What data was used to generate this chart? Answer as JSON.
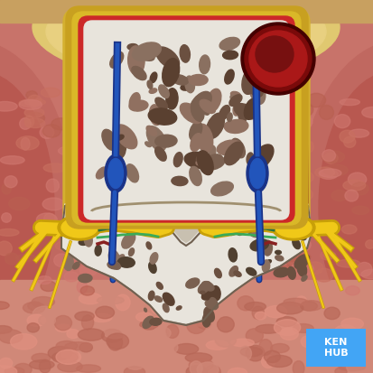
{
  "fig_size": [
    4.13,
    4.13
  ],
  "dpi": 100,
  "bg_muscle": "#c8736a",
  "bg_top_skin": "#e8b090",
  "bg_fat_yellow": "#e8c878",
  "bone_white": "#e8e4dc",
  "bone_spots": [
    "#6b5040",
    "#7a6050",
    "#8a7060",
    "#5a4030",
    "#907060"
  ],
  "red_periosteum": "#cc2828",
  "vessel_dark": "#7a0a0a",
  "vessel_mid": "#aa1818",
  "vessel_light": "#cc3030",
  "yellow_nerve": "#f0c818",
  "yellow_dark": "#c8a008",
  "green_dura": "#2a7040",
  "green_pia": "#3aaa58",
  "blue_vein": "#2255bb",
  "blue_dark": "#1a3388",
  "sc_white": "#e8e4d8",
  "sc_gray": "#c8c0b0",
  "kenhub_blue": "#42a5f5",
  "kenhub_text": "white"
}
